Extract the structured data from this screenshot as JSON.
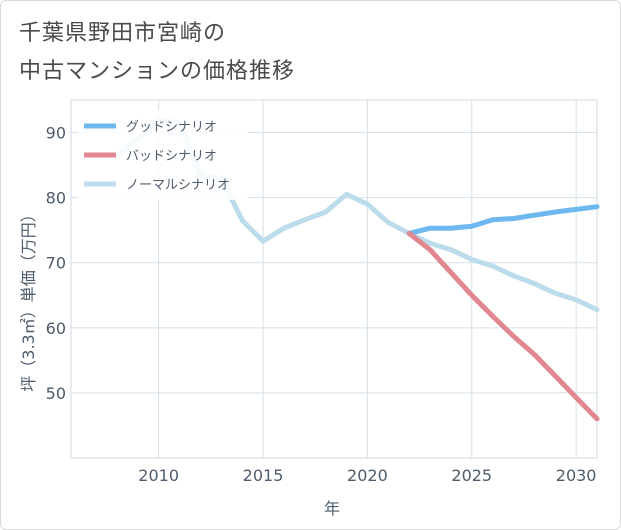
{
  "title_lines": [
    "千葉県野田市宮崎の",
    "中古マンションの価格推移"
  ],
  "chart_data": {
    "type": "line",
    "xlabel": "年",
    "ylabel": "坪（3.3㎡）単価（万円）",
    "xlim": [
      2005.8,
      2031
    ],
    "ylim": [
      40,
      95
    ],
    "x_ticks": [
      2010,
      2015,
      2020,
      2025,
      2030
    ],
    "y_ticks": [
      50,
      60,
      70,
      80,
      90
    ],
    "grid": true,
    "legend_position": "top-left",
    "series": [
      {
        "name": "グッドシナリオ",
        "color": "#6cb8ef",
        "points": [
          [
            2022,
            74.5
          ],
          [
            2023,
            75.3
          ],
          [
            2024,
            75.3
          ],
          [
            2025,
            75.6
          ],
          [
            2026,
            76.6
          ],
          [
            2027,
            76.8
          ],
          [
            2028,
            77.3
          ],
          [
            2029,
            77.8
          ],
          [
            2030,
            78.2
          ],
          [
            2031,
            78.6
          ]
        ]
      },
      {
        "name": "バッドシナリオ",
        "color": "#e0878f",
        "points": [
          [
            2022,
            74.5
          ],
          [
            2023,
            72.0
          ],
          [
            2024,
            68.5
          ],
          [
            2025,
            65.0
          ],
          [
            2026,
            61.8
          ],
          [
            2027,
            58.7
          ],
          [
            2028,
            55.9
          ],
          [
            2029,
            52.6
          ],
          [
            2030,
            49.3
          ],
          [
            2031,
            46.0
          ]
        ]
      },
      {
        "name": "ノーマルシナリオ",
        "color": "#bcdcec",
        "points": [
          [
            2008,
            86.5
          ],
          [
            2009,
            89.0
          ],
          [
            2010,
            92.0
          ],
          [
            2011,
            91.5
          ],
          [
            2012,
            83.5
          ],
          [
            2013,
            83.0
          ],
          [
            2014,
            76.5
          ],
          [
            2015,
            73.3
          ],
          [
            2016,
            75.3
          ],
          [
            2017,
            76.6
          ],
          [
            2018,
            77.8
          ],
          [
            2019,
            80.5
          ],
          [
            2020,
            79.0
          ],
          [
            2021,
            76.2
          ],
          [
            2022,
            74.5
          ],
          [
            2023,
            73.0
          ],
          [
            2024,
            72.0
          ],
          [
            2025,
            70.5
          ],
          [
            2026,
            69.5
          ],
          [
            2027,
            68.0
          ],
          [
            2028,
            66.8
          ],
          [
            2029,
            65.3
          ],
          [
            2030,
            64.3
          ],
          [
            2031,
            62.8
          ]
        ]
      }
    ]
  }
}
